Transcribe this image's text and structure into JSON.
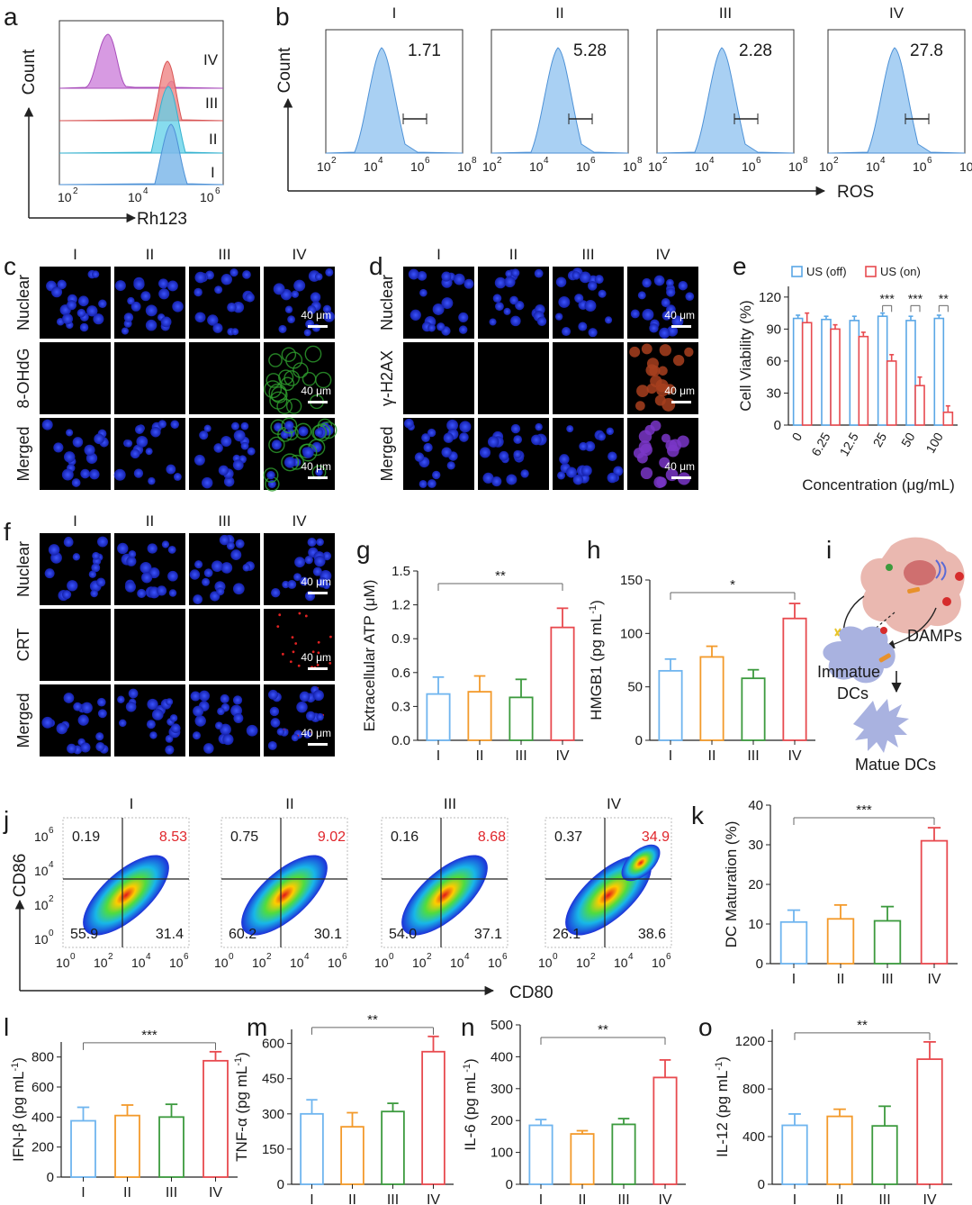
{
  "panels": {
    "a": "a",
    "b": "b",
    "c": "c",
    "d": "d",
    "e": "e",
    "f": "f",
    "g": "g",
    "h": "h",
    "i": "i",
    "j": "j",
    "k": "k",
    "l": "l",
    "m": "m",
    "n": "n",
    "o": "o"
  },
  "groups": [
    "I",
    "II",
    "III",
    "IV"
  ],
  "colors": {
    "I": "#6fb5ef",
    "II": "#f39a2b",
    "III": "#3c9a3e",
    "IV": "#e84a4f",
    "off": "#5aa7e6",
    "on": "#e84a4f",
    "hist": "#a9d0f3",
    "hist_line": "#4d91d6",
    "nucleus": "#2230d6"
  },
  "panel_a": {
    "ylabel": "Count",
    "xlabel": "Rh123",
    "ticks": [
      "10",
      "10",
      "10"
    ],
    "tick_exps": [
      "2",
      "4",
      "6"
    ],
    "row_labels": [
      "IV",
      "III",
      "II",
      "I"
    ]
  },
  "panel_b": {
    "ylabel": "Count",
    "xlabel": "ROS",
    "ticks": [
      "10",
      "10",
      "10",
      "10"
    ],
    "tick_exps": [
      "2",
      "4",
      "6",
      "8"
    ],
    "values": [
      "1.71",
      "5.28",
      "2.28",
      "27.8"
    ]
  },
  "panel_c": {
    "row_labels": [
      "Nuclear",
      "8-OHdG",
      "Merged"
    ],
    "scale": "40 μm"
  },
  "panel_d": {
    "row_labels": [
      "Nuclear",
      "γ-H2AX",
      "Merged"
    ],
    "scale": "40 μm"
  },
  "panel_f": {
    "row_labels": [
      "Nuclear",
      "CRT",
      "Merged"
    ],
    "scale": "40 μm"
  },
  "panel_i": {
    "damps": "DAMPs",
    "immature1": "Immatue",
    "immature2": "DCs",
    "mature": "Matue DCs"
  },
  "panel_j": {
    "ylabel": "CD86",
    "xlabel": "CD80",
    "quadrants": [
      {
        "ul": "0.19",
        "ur": "8.53",
        "ll": "55.9",
        "lr": "31.4"
      },
      {
        "ul": "0.75",
        "ur": "9.02",
        "ll": "60.2",
        "lr": "30.1"
      },
      {
        "ul": "0.16",
        "ur": "8.68",
        "ll": "54.0",
        "lr": "37.1"
      },
      {
        "ul": "0.37",
        "ur": "34.9",
        "ll": "26.1",
        "lr": "38.6"
      }
    ],
    "xticks": [
      "10",
      "10",
      "10",
      "10"
    ],
    "xexps": [
      "0",
      "2",
      "4",
      "6"
    ],
    "yticks": [
      "10",
      "10",
      "10",
      "10"
    ],
    "yexps": [
      "0",
      "2",
      "4",
      "6"
    ]
  },
  "chart_data": [
    {
      "panel": "e",
      "type": "bar",
      "categories": [
        "0",
        "6.25",
        "12.5",
        "25",
        "50",
        "100"
      ],
      "series": [
        {
          "name": "US (off)",
          "values": [
            100,
            99,
            98,
            102,
            98,
            100
          ],
          "errors": [
            3,
            3,
            4,
            3,
            4,
            3
          ]
        },
        {
          "name": "US (on)",
          "values": [
            96,
            90,
            83,
            60,
            37,
            12
          ],
          "errors": [
            9,
            4,
            4,
            6,
            8,
            6
          ]
        }
      ],
      "xlabel": "Concentration (μg/mL)",
      "ylabel": "Cell Viability (%)",
      "ylim": [
        0,
        130
      ],
      "yticks": [
        0,
        30,
        60,
        90,
        120
      ],
      "significance": [
        {
          "index": 3,
          "label": "***"
        },
        {
          "index": 4,
          "label": "***"
        },
        {
          "index": 5,
          "label": "**"
        }
      ]
    },
    {
      "panel": "g",
      "type": "bar",
      "categories": [
        "I",
        "II",
        "III",
        "IV"
      ],
      "values": [
        0.41,
        0.43,
        0.38,
        1.0
      ],
      "errors": [
        0.15,
        0.14,
        0.16,
        0.17
      ],
      "ylabel": "Extracellular ATP (μM)",
      "ylim": [
        0,
        1.5
      ],
      "yticks": [
        "0.0",
        "0.3",
        "0.6",
        "0.9",
        "1.2",
        "1.5"
      ],
      "significance": "**"
    },
    {
      "panel": "h",
      "type": "bar",
      "categories": [
        "I",
        "II",
        "III",
        "IV"
      ],
      "values": [
        65,
        78,
        58,
        114
      ],
      "errors": [
        11,
        10,
        8,
        14
      ],
      "ylabel": "HMGB1 (pg mL",
      "ylabel_sup": "-1",
      "ylabel_end": ")",
      "ylim": [
        0,
        150
      ],
      "yticks": [
        "0",
        "50",
        "100",
        "150"
      ],
      "significance": "*"
    },
    {
      "panel": "k",
      "type": "bar",
      "categories": [
        "I",
        "II",
        "III",
        "IV"
      ],
      "values": [
        10.5,
        11.3,
        10.8,
        31
      ],
      "errors": [
        3,
        3.5,
        3.6,
        3.3
      ],
      "ylabel": "DC Maturation (%)",
      "ylim": [
        0,
        40
      ],
      "yticks": [
        "0",
        "10",
        "20",
        "30",
        "40"
      ],
      "significance": "***"
    },
    {
      "panel": "l",
      "type": "bar",
      "categories": [
        "I",
        "II",
        "III",
        "IV"
      ],
      "values": [
        375,
        410,
        400,
        775
      ],
      "errors": [
        90,
        70,
        85,
        60
      ],
      "ylabel": "IFN-β (pg mL",
      "ylabel_sup": "-1",
      "ylabel_end": ")",
      "ylim": [
        0,
        900
      ],
      "yticks": [
        "0",
        "200",
        "400",
        "600",
        "800"
      ],
      "significance": "***"
    },
    {
      "panel": "m",
      "type": "bar",
      "categories": [
        "I",
        "II",
        "III",
        "IV"
      ],
      "values": [
        300,
        245,
        310,
        565
      ],
      "errors": [
        60,
        60,
        35,
        65
      ],
      "ylabel": "TNF-α (pg mL",
      "ylabel_sup": "-1",
      "ylabel_end": ")",
      "ylim": [
        0,
        660
      ],
      "yticks": [
        "0",
        "150",
        "300",
        "450",
        "600"
      ],
      "significance": "**"
    },
    {
      "panel": "n",
      "type": "bar",
      "categories": [
        "I",
        "II",
        "III",
        "IV"
      ],
      "values": [
        185,
        158,
        188,
        335
      ],
      "errors": [
        18,
        10,
        18,
        55
      ],
      "ylabel": "IL-6 (pg mL",
      "ylabel_sup": "-1",
      "ylabel_end": ")",
      "ylim": [
        0,
        500
      ],
      "yticks": [
        "0",
        "100",
        "200",
        "300",
        "400",
        "500"
      ],
      "significance": "**"
    },
    {
      "panel": "o",
      "type": "bar",
      "categories": [
        "I",
        "II",
        "III",
        "IV"
      ],
      "values": [
        495,
        570,
        490,
        1050
      ],
      "errors": [
        95,
        60,
        165,
        145
      ],
      "ylabel": "IL-12 (pg mL",
      "ylabel_sup": "-1",
      "ylabel_end": ")",
      "ylim": [
        0,
        1300
      ],
      "yticks": [
        "0",
        "400",
        "800",
        "1200"
      ],
      "significance": "**"
    }
  ]
}
